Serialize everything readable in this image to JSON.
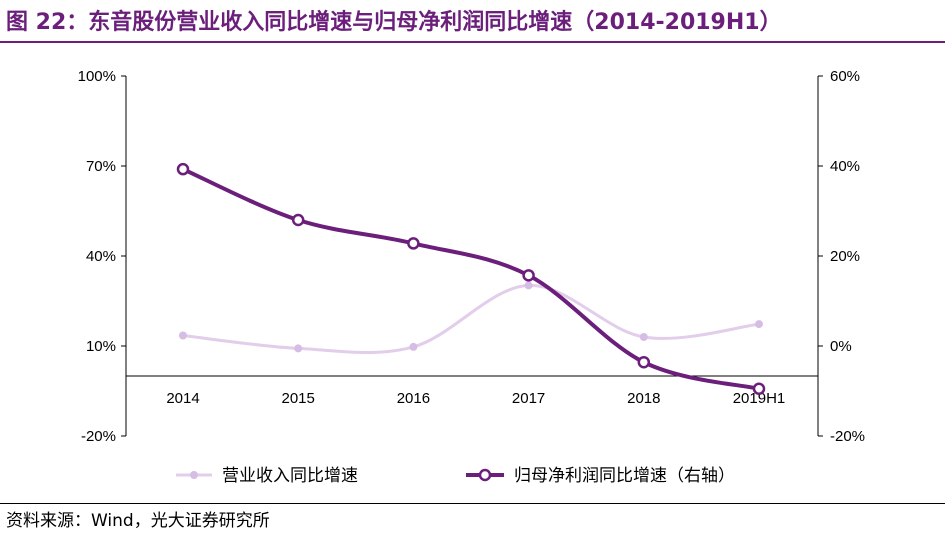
{
  "title": "图 22：东音股份营业收入同比增速与归母净利润同比增速（2014-2019H1）",
  "source": "资料来源：Wind，光大证券研究所",
  "colors": {
    "title": "#6b1f7b",
    "revenue": "#e2cdea",
    "profit": "#6b1f7b"
  },
  "chart_data": {
    "type": "line",
    "categories": [
      "2014",
      "2015",
      "2016",
      "2017",
      "2018",
      "2019H1"
    ],
    "series": [
      {
        "name": "营业收入同比增速",
        "axis": "left",
        "values": [
          13.5,
          9.2,
          9.7,
          30.2,
          13.0,
          17.3
        ]
      },
      {
        "name": "归母净利润同比增速（右轴）",
        "axis": "right",
        "values": [
          39.3,
          28.0,
          22.8,
          15.7,
          -3.6,
          -9.5
        ]
      }
    ],
    "y_left": {
      "range": [
        -20,
        100
      ],
      "ticks": [
        -20,
        10,
        40,
        70,
        100
      ],
      "tick_labels": [
        "-20%",
        "10%",
        "40%",
        "70%",
        "100%"
      ]
    },
    "y_right": {
      "range": [
        -20,
        60
      ],
      "ticks": [
        -20,
        0,
        20,
        40,
        60
      ],
      "tick_labels": [
        "-20%",
        "0%",
        "20%",
        "40%",
        "60%"
      ]
    },
    "x_axis_at_left_value": 0,
    "grid": false,
    "legend": "bottom"
  }
}
